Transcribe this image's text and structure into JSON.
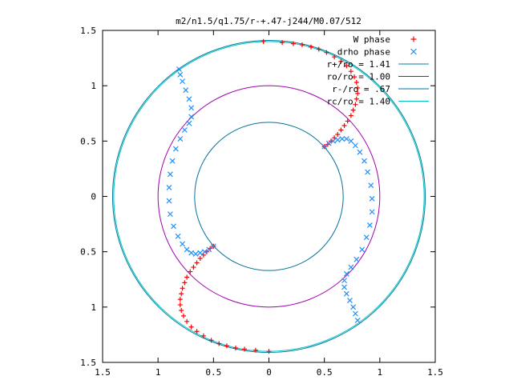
{
  "chart_data": {
    "type": "scatter",
    "title": "m2/n1.5/q1.75/r-+.47-j244/M0.07/512",
    "xlabel": "",
    "ylabel": "",
    "xlim": [
      -1.5,
      1.5
    ],
    "ylim": [
      -1.5,
      1.5
    ],
    "x_ticks": [
      {
        "value": -1.5,
        "label": "1.5"
      },
      {
        "value": -1,
        "label": "1"
      },
      {
        "value": -0.5,
        "label": "0.5"
      },
      {
        "value": 0,
        "label": "0"
      },
      {
        "value": 0.5,
        "label": "0.5"
      },
      {
        "value": 1,
        "label": "1"
      },
      {
        "value": 1.5,
        "label": "1.5"
      }
    ],
    "y_ticks": [
      {
        "value": 1.5,
        "label": "1.5"
      },
      {
        "value": 1,
        "label": "1"
      },
      {
        "value": 0.5,
        "label": "0.5"
      },
      {
        "value": 0,
        "label": "0"
      },
      {
        "value": -0.5,
        "label": "0.5"
      },
      {
        "value": -1,
        "label": "1"
      },
      {
        "value": -1.5,
        "label": "1.5"
      }
    ],
    "grid": false,
    "legend_position": "top-right",
    "circles": [
      {
        "name": "r+/ro = 1.41",
        "radius": 1.41,
        "color": "#0080a0"
      },
      {
        "name": "ro/ro = 1.00",
        "radius": 1.0,
        "color": "#a000b0"
      },
      {
        "name": "r-/ro = .67",
        "radius": 0.67,
        "color": "#0070a0"
      },
      {
        "name": "rc/ro = 1.40",
        "radius": 1.4,
        "color": "#00c0c0"
      }
    ],
    "series": [
      {
        "name": "W phase",
        "marker": "plus",
        "color": "#ff0000",
        "points": [
          [
            0.5,
            0.45
          ],
          [
            0.53,
            0.47
          ],
          [
            0.56,
            0.5
          ],
          [
            0.59,
            0.53
          ],
          [
            0.62,
            0.56
          ],
          [
            0.65,
            0.6
          ],
          [
            0.68,
            0.64
          ],
          [
            0.71,
            0.68
          ],
          [
            0.74,
            0.73
          ],
          [
            0.76,
            0.78
          ],
          [
            0.78,
            0.83
          ],
          [
            0.79,
            0.88
          ],
          [
            0.8,
            0.93
          ],
          [
            0.8,
            0.98
          ],
          [
            0.79,
            1.03
          ],
          [
            0.77,
            1.08
          ],
          [
            0.74,
            1.13
          ],
          [
            0.7,
            1.18
          ],
          [
            0.65,
            1.22
          ],
          [
            0.59,
            1.26
          ],
          [
            0.52,
            1.3
          ],
          [
            0.45,
            1.33
          ],
          [
            0.38,
            1.35
          ],
          [
            0.3,
            1.37
          ],
          [
            0.22,
            1.38
          ],
          [
            0.12,
            1.39
          ],
          [
            -0.05,
            1.4
          ],
          [
            -0.5,
            -0.45
          ],
          [
            -0.53,
            -0.47
          ],
          [
            -0.56,
            -0.5
          ],
          [
            -0.59,
            -0.53
          ],
          [
            -0.62,
            -0.56
          ],
          [
            -0.65,
            -0.6
          ],
          [
            -0.68,
            -0.64
          ],
          [
            -0.71,
            -0.68
          ],
          [
            -0.74,
            -0.73
          ],
          [
            -0.76,
            -0.78
          ],
          [
            -0.78,
            -0.83
          ],
          [
            -0.79,
            -0.88
          ],
          [
            -0.8,
            -0.93
          ],
          [
            -0.8,
            -0.98
          ],
          [
            -0.79,
            -1.03
          ],
          [
            -0.77,
            -1.08
          ],
          [
            -0.74,
            -1.13
          ],
          [
            -0.7,
            -1.18
          ],
          [
            -0.65,
            -1.22
          ],
          [
            -0.59,
            -1.26
          ],
          [
            -0.52,
            -1.3
          ],
          [
            -0.45,
            -1.33
          ],
          [
            -0.38,
            -1.35
          ],
          [
            -0.3,
            -1.37
          ],
          [
            -0.22,
            -1.38
          ],
          [
            -0.12,
            -1.39
          ],
          [
            0.0,
            -1.4
          ]
        ]
      },
      {
        "name": "drho phase",
        "marker": "cross",
        "color": "#1e90ff",
        "points": [
          [
            0.5,
            0.45
          ],
          [
            0.54,
            0.48
          ],
          [
            0.58,
            0.5
          ],
          [
            0.62,
            0.51
          ],
          [
            0.66,
            0.52
          ],
          [
            0.7,
            0.52
          ],
          [
            0.74,
            0.5
          ],
          [
            0.78,
            0.46
          ],
          [
            0.82,
            0.4
          ],
          [
            0.86,
            0.32
          ],
          [
            0.89,
            0.22
          ],
          [
            0.92,
            0.1
          ],
          [
            0.93,
            -0.02
          ],
          [
            0.93,
            -0.14
          ],
          [
            0.91,
            -0.26
          ],
          [
            0.88,
            -0.37
          ],
          [
            0.84,
            -0.48
          ],
          [
            0.79,
            -0.57
          ],
          [
            0.74,
            -0.64
          ],
          [
            0.7,
            -0.7
          ],
          [
            0.68,
            -0.76
          ],
          [
            0.68,
            -0.82
          ],
          [
            0.7,
            -0.88
          ],
          [
            0.73,
            -0.94
          ],
          [
            0.76,
            -1.0
          ],
          [
            0.78,
            -1.06
          ],
          [
            0.8,
            -1.12
          ],
          [
            -0.5,
            -0.45
          ],
          [
            -0.54,
            -0.48
          ],
          [
            -0.58,
            -0.5
          ],
          [
            -0.62,
            -0.51
          ],
          [
            -0.66,
            -0.52
          ],
          [
            -0.7,
            -0.51
          ],
          [
            -0.74,
            -0.48
          ],
          [
            -0.78,
            -0.43
          ],
          [
            -0.82,
            -0.36
          ],
          [
            -0.86,
            -0.27
          ],
          [
            -0.89,
            -0.16
          ],
          [
            -0.9,
            -0.04
          ],
          [
            -0.9,
            0.08
          ],
          [
            -0.89,
            0.2
          ],
          [
            -0.87,
            0.32
          ],
          [
            -0.84,
            0.43
          ],
          [
            -0.8,
            0.52
          ],
          [
            -0.76,
            0.6
          ],
          [
            -0.72,
            0.66
          ],
          [
            -0.7,
            0.72
          ],
          [
            -0.7,
            0.8
          ],
          [
            -0.72,
            0.88
          ],
          [
            -0.75,
            0.96
          ],
          [
            -0.78,
            1.04
          ],
          [
            -0.8,
            1.1
          ],
          [
            -0.81,
            1.15
          ]
        ]
      }
    ]
  }
}
